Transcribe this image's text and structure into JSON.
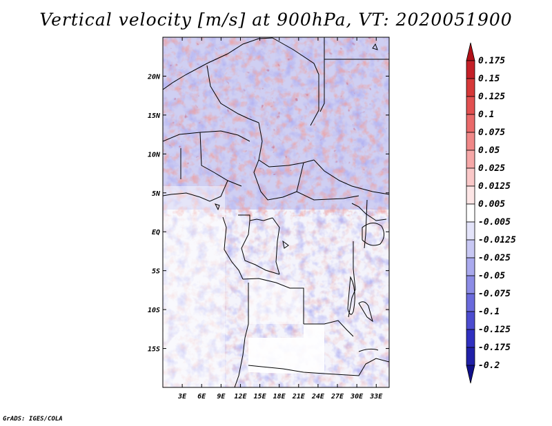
{
  "title": "Vertical velocity [m/s] at 900hPa, VT: 2020051900",
  "credit": "GrADS: IGES/COLA",
  "map": {
    "region": "Central Africa",
    "variable": "vertical velocity",
    "units": "m/s",
    "level": "900hPa",
    "valid_time": "2020051900",
    "lon_range": [
      0,
      35
    ],
    "lat_range": [
      -20,
      25
    ],
    "lon_ticks": [
      "3E",
      "6E",
      "9E",
      "12E",
      "15E",
      "18E",
      "21E",
      "24E",
      "27E",
      "30E",
      "33E"
    ],
    "lat_ticks": [
      "20N",
      "15N",
      "10N",
      "5N",
      "EQ",
      "5S",
      "10S",
      "15S"
    ]
  },
  "colorbar": {
    "labels": [
      "0.175",
      "0.15",
      "0.125",
      "0.1",
      "0.075",
      "0.05",
      "0.025",
      "0.0125",
      "0.005",
      "-0.005",
      "-0.0125",
      "-0.025",
      "-0.05",
      "-0.075",
      "-0.1",
      "-0.125",
      "-0.175",
      "-0.2"
    ],
    "colors": [
      "#b01018",
      "#c42028",
      "#d63838",
      "#e25050",
      "#ea6a6a",
      "#f08888",
      "#f6a8a8",
      "#fac8c8",
      "#fde6e6",
      "#ffffff",
      "#e4e4fa",
      "#c8c8f4",
      "#aaaaee",
      "#8c8ce6",
      "#6a6adc",
      "#4c4cd0",
      "#3030c0",
      "#2020a8",
      "#10108a"
    ]
  }
}
